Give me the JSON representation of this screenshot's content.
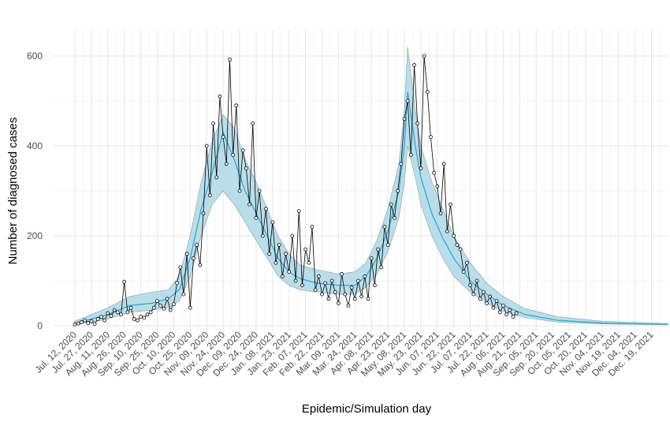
{
  "chart_data": {
    "type": "line",
    "title": "",
    "xlabel": "Epidemic/Simulation day",
    "ylabel": "Number of diagnosed cases",
    "ylim": [
      0,
      620
    ],
    "yticks": [
      0,
      200,
      400,
      600
    ],
    "ytick_labels": [
      "0",
      "200",
      "400",
      "600"
    ],
    "grid": true,
    "x_unit": "days since Jul. 12, 2020",
    "xtick_step_days": 15,
    "xtick_labels": [
      "Jul. 12, 2020",
      "Jul. 27, 2020",
      "Aug. 11, 2020",
      "Aug. 26, 2020",
      "Sep. 10, 2020",
      "Sep. 25, 2020",
      "Oct. 10, 2020",
      "Oct. 25, 2020",
      "Nov. 09, 2020",
      "Nov. 24, 2020",
      "Dec. 09, 2020",
      "Dec. 24, 2020",
      "Jan. 08, 2021",
      "Jan. 23, 2021",
      "Feb. 07, 2021",
      "Feb. 22, 2021",
      "Mar. 09, 2021",
      "Mar. 24, 2021",
      "Apr. 08, 2021",
      "Apr. 23, 2021",
      "May. 08, 2021",
      "May. 23, 2021",
      "Jun. 07, 2021",
      "Jun. 22, 2021",
      "Jul. 07, 2021",
      "Jul. 22, 2021",
      "Aug. 06, 2021",
      "Aug. 21, 2021",
      "Sep. 05, 2021",
      "Sep. 20, 2021",
      "Oct. 05, 2021",
      "Oct. 20, 2021",
      "Nov. 04, 2021",
      "Nov. 19, 2021",
      "Dec. 04, 2021",
      "Dec. 19, 2021"
    ],
    "series": [
      {
        "name": "model mean",
        "color": "#2ba3cc",
        "days": [
          0,
          30,
          50,
          70,
          85,
          95,
          105,
          115,
          125,
          135,
          145,
          155,
          165,
          175,
          185,
          195,
          205,
          220,
          240,
          255,
          265,
          275,
          285,
          295,
          300,
          303,
          310,
          315,
          325,
          335,
          345,
          360,
          375,
          390,
          410,
          440,
          480,
          540
        ],
        "values": [
          5,
          25,
          45,
          50,
          60,
          80,
          150,
          260,
          340,
          430,
          370,
          300,
          250,
          200,
          150,
          120,
          105,
          95,
          90,
          90,
          110,
          150,
          210,
          300,
          400,
          520,
          400,
          330,
          250,
          195,
          150,
          100,
          70,
          45,
          25,
          12,
          6,
          3
        ]
      },
      {
        "name": "model band lower",
        "color": "#add8e6",
        "days": [
          0,
          30,
          50,
          70,
          85,
          95,
          105,
          115,
          125,
          135,
          145,
          155,
          165,
          175,
          185,
          195,
          205,
          220,
          240,
          255,
          265,
          275,
          285,
          295,
          300,
          303,
          310,
          315,
          325,
          335,
          345,
          360,
          375,
          390,
          410,
          440,
          480,
          540
        ],
        "values": [
          2,
          15,
          30,
          35,
          40,
          55,
          110,
          200,
          270,
          300,
          270,
          230,
          190,
          150,
          110,
          90,
          80,
          75,
          70,
          70,
          85,
          115,
          165,
          240,
          320,
          400,
          330,
          270,
          200,
          150,
          110,
          75,
          50,
          32,
          18,
          8,
          4,
          2
        ]
      },
      {
        "name": "model band upper",
        "color": "#add8e6",
        "days": [
          0,
          30,
          50,
          70,
          85,
          95,
          105,
          115,
          125,
          135,
          145,
          155,
          165,
          175,
          185,
          195,
          205,
          220,
          240,
          255,
          265,
          275,
          285,
          295,
          300,
          303,
          310,
          315,
          325,
          335,
          345,
          360,
          375,
          390,
          410,
          440,
          480,
          540
        ],
        "values": [
          10,
          40,
          65,
          75,
          80,
          110,
          200,
          320,
          410,
          470,
          440,
          370,
          320,
          260,
          200,
          160,
          135,
          125,
          115,
          120,
          140,
          190,
          260,
          360,
          480,
          620,
          480,
          400,
          320,
          260,
          200,
          140,
          95,
          65,
          38,
          20,
          10,
          5
        ]
      },
      {
        "name": "observed",
        "color": "#000000",
        "day_step": 3,
        "values": [
          3,
          5,
          8,
          12,
          6,
          10,
          4,
          15,
          20,
          12,
          28,
          22,
          35,
          30,
          25,
          98,
          30,
          40,
          15,
          12,
          20,
          18,
          25,
          30,
          40,
          55,
          45,
          38,
          60,
          35,
          48,
          95,
          130,
          70,
          160,
          40,
          150,
          180,
          135,
          250,
          400,
          290,
          450,
          330,
          510,
          420,
          360,
          592,
          380,
          490,
          300,
          390,
          350,
          270,
          450,
          240,
          300,
          200,
          260,
          160,
          230,
          140,
          180,
          110,
          160,
          120,
          200,
          100,
          255,
          90,
          170,
          140,
          220,
          80,
          110,
          70,
          95,
          60,
          100,
          75,
          50,
          115,
          70,
          45,
          85,
          60,
          100,
          65,
          110,
          60,
          150,
          90,
          170,
          130,
          220,
          180,
          270,
          240,
          300,
          360,
          460,
          500,
          380,
          580,
          450,
          350,
          600,
          520,
          420,
          340,
          310,
          250,
          360,
          210,
          270,
          200,
          180,
          170,
          120,
          140,
          90,
          70,
          100,
          60,
          75,
          50,
          65,
          40,
          55,
          30,
          45,
          25,
          35,
          20,
          28
        ]
      }
    ]
  }
}
